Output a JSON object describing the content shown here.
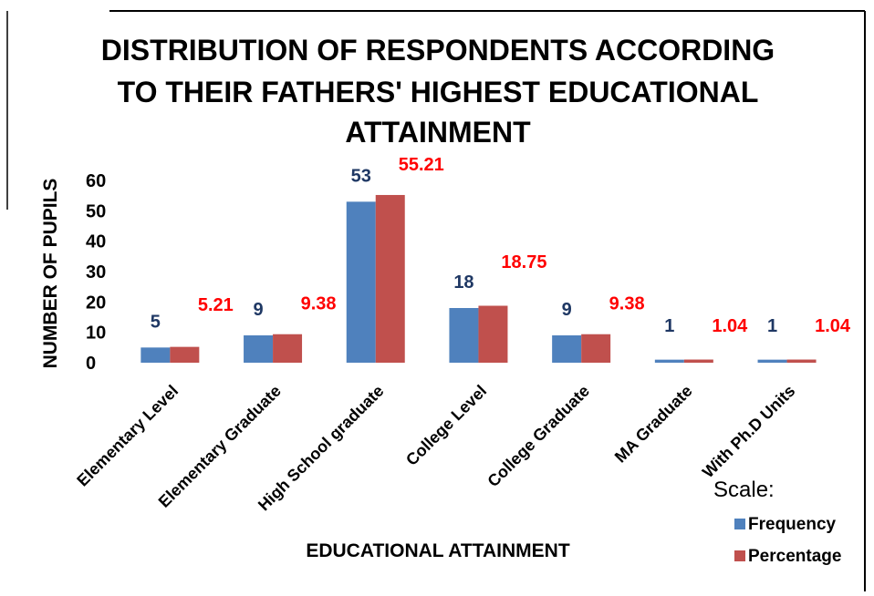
{
  "chart_data": {
    "type": "bar",
    "title_lines": [
      "DISTRIBUTION OF RESPONDENTS ACCORDING",
      "TO THEIR FATHERS' HIGHEST EDUCATIONAL",
      "ATTAINMENT"
    ],
    "xlabel": "EDUCATIONAL ATTAINMENT",
    "ylabel": "NUMBER OF PUPILS",
    "ylim": [
      0,
      60
    ],
    "yticks": [
      0,
      10,
      20,
      30,
      40,
      50,
      60
    ],
    "grid": false,
    "legend_title": "Scale:",
    "legend_position": "bottom-right",
    "categories": [
      "Elementary Level",
      "Elementary Graduate",
      "High School graduate",
      "College Level",
      "College Graduate",
      "MA Graduate",
      "With Ph.D Units"
    ],
    "series": [
      {
        "name": "Frequency",
        "color": "#4f81bd",
        "label_color": "#1f3864",
        "values": [
          5,
          9,
          53,
          18,
          9,
          1,
          1
        ],
        "labels": [
          "5",
          "9",
          "53",
          "18",
          "9",
          "1",
          "1"
        ]
      },
      {
        "name": "Percentage",
        "color": "#c0504d",
        "label_color": "#ff0000",
        "values": [
          5.21,
          9.38,
          55.21,
          18.75,
          9.38,
          1.04,
          1.04
        ],
        "labels": [
          "5.21",
          "9.38",
          "55.21",
          "18.75",
          "9.38",
          "1.04",
          "1.04"
        ]
      }
    ]
  }
}
